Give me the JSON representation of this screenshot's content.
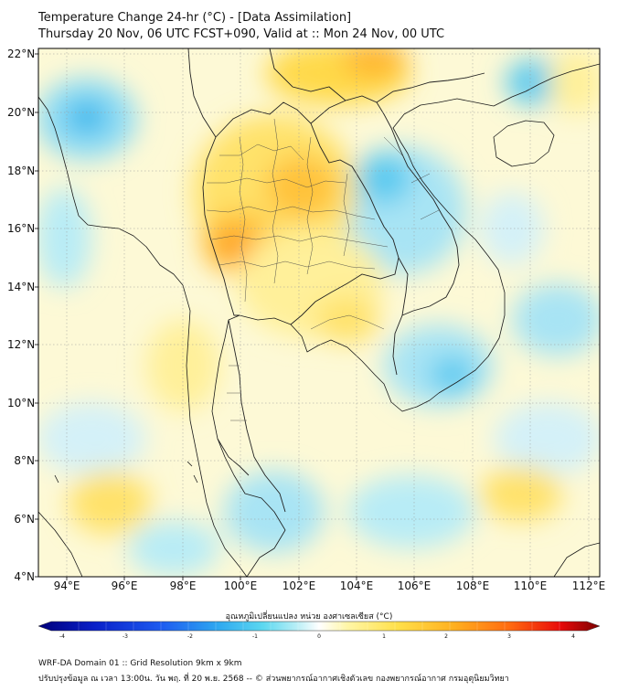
{
  "title_line1": "Temperature Change 24-hr (°C) - [Data Assimilation]",
  "title_line2": "Thursday 20 Nov, 06 UTC FCST+090, Valid at :: Mon 24 Nov, 00 UTC",
  "lat_labels": [
    "22°N",
    "20°N",
    "18°N",
    "16°N",
    "14°N",
    "12°N",
    "10°N",
    "8°N",
    "6°N",
    "4°N"
  ],
  "lon_labels": [
    "94°E",
    "96°E",
    "98°E",
    "100°E",
    "102°E",
    "104°E",
    "106°E",
    "108°E",
    "110°E",
    "112°E"
  ],
  "colorbar": {
    "label": "อุณหภูมิเปลี่ยนแปลง หน่วย องศาเซลเซียส (°C)",
    "ticks": [
      "-4",
      "-3",
      "-2",
      "-1",
      "0",
      "1",
      "2",
      "3",
      "4"
    ],
    "colors": [
      "#00007a",
      "#0a20c8",
      "#1e5cf0",
      "#2ea8f0",
      "#5cd8f0",
      "#b8eef6",
      "#ffffff",
      "#fff6a8",
      "#ffe04a",
      "#ffb020",
      "#ff6a10",
      "#e80a0a",
      "#7a0000"
    ]
  },
  "footer_line1": "WRF-DA Domain 01 :: Grid Resolution 9km x 9km",
  "footer_line2": "ปรับปรุงข้อมูล ณ เวลา 13:00น. วัน พฤ. ที่ 20 พ.ย. 2568 -- © ส่วนพยากรณ์อากาศเชิงตัวเลข กองพยากรณ์อากาศ กรมอุตุนิยมวิทยา",
  "field": {
    "colors": {
      "cool_strong": "#2fb6ec",
      "cool": "#8fdcf4",
      "cool_light": "#d4f1f8",
      "base": "#fdf9d6",
      "warm_light": "#fff2a0",
      "warm": "#ffd94a",
      "warm_strong": "#ffb52e",
      "hot": "#ff8c1a"
    }
  }
}
